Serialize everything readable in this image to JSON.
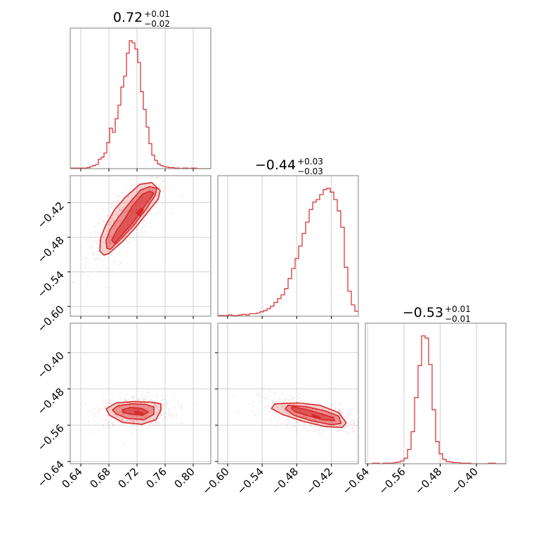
{
  "chart_data": {
    "type": "corner",
    "color": "#d62728",
    "grid": true,
    "params": [
      {
        "title": {
          "median": "0.72",
          "plus": "+0.01",
          "minus": "−0.02"
        },
        "range": [
          0.625,
          0.825
        ],
        "ticks": [
          0.64,
          0.68,
          0.72,
          0.76,
          0.8
        ],
        "tick_labels": [
          "0.64",
          "0.68",
          "0.72",
          "0.76",
          "0.80"
        ]
      },
      {
        "title": {
          "median": "−0.44",
          "plus": "+0.03",
          "minus": "−0.03"
        },
        "range": [
          -0.617,
          -0.373
        ],
        "ticks": [
          -0.6,
          -0.54,
          -0.48,
          -0.42
        ],
        "tick_labels": [
          "−0.60",
          "−0.54",
          "−0.48",
          "−0.42"
        ]
      },
      {
        "title": {
          "median": "−0.53",
          "plus": "+0.01",
          "minus": "−0.01"
        },
        "range": [
          -0.645,
          -0.335
        ],
        "ticks": [
          -0.64,
          -0.56,
          -0.48,
          -0.4
        ],
        "tick_labels": [
          "−0.64",
          "−0.56",
          "−0.48",
          "−0.40"
        ]
      }
    ],
    "histograms": [
      {
        "param": 0,
        "bin_edges": [
          0.625,
          0.825
        ],
        "counts": [
          1,
          1,
          1,
          1,
          1,
          1,
          2,
          4,
          6,
          8,
          18,
          22,
          30,
          50,
          78,
          70,
          96,
          122,
          157,
          178,
          222,
          246,
          242,
          230,
          204,
          148,
          114,
          80,
          48,
          26,
          16,
          9,
          6,
          4,
          3,
          2,
          2,
          1,
          1,
          0,
          1,
          1,
          0,
          1,
          1,
          0,
          0,
          0,
          0,
          0
        ]
      },
      {
        "param": 1,
        "bin_edges": [
          -0.617,
          -0.373
        ],
        "counts": [
          1,
          1,
          1,
          2,
          1,
          1,
          2,
          3,
          2,
          4,
          4,
          5,
          7,
          9,
          12,
          16,
          22,
          28,
          34,
          44,
          60,
          76,
          92,
          112,
          132,
          150,
          170,
          182,
          186,
          194,
          202,
          204,
          198,
          186,
          168,
          142,
          78,
          40,
          18,
          8
        ]
      },
      {
        "param": 2,
        "bin_edges": [
          -0.645,
          -0.335
        ],
        "counts": [
          0,
          0,
          1,
          1,
          0,
          1,
          1,
          1,
          2,
          3,
          5,
          10,
          26,
          58,
          120,
          178,
          232,
          228,
          180,
          98,
          40,
          18,
          8,
          4,
          3,
          2,
          2,
          1,
          1,
          1,
          0,
          0,
          0,
          0,
          0,
          1,
          1,
          0,
          0,
          0
        ]
      }
    ],
    "pairs": [
      {
        "x_param": 0,
        "y_param": 1,
        "contours": [
          [
            [
              0.688,
              -0.491
            ],
            [
              0.7,
              -0.474
            ],
            [
              0.716,
              -0.452
            ],
            [
              0.73,
              -0.427
            ],
            [
              0.741,
              -0.409
            ],
            [
              0.744,
              -0.403
            ],
            [
              0.738,
              -0.4
            ],
            [
              0.728,
              -0.405
            ],
            [
              0.714,
              -0.425
            ],
            [
              0.702,
              -0.449
            ],
            [
              0.69,
              -0.47
            ],
            [
              0.684,
              -0.485
            ]
          ],
          [
            [
              0.682,
              -0.501
            ],
            [
              0.698,
              -0.482
            ],
            [
              0.716,
              -0.458
            ],
            [
              0.733,
              -0.431
            ],
            [
              0.746,
              -0.407
            ],
            [
              0.748,
              -0.395
            ],
            [
              0.738,
              -0.392
            ],
            [
              0.725,
              -0.398
            ],
            [
              0.709,
              -0.421
            ],
            [
              0.693,
              -0.446
            ],
            [
              0.682,
              -0.466
            ],
            [
              0.676,
              -0.485
            ],
            [
              0.677,
              -0.499
            ]
          ],
          [
            [
              0.68,
              -0.508
            ],
            [
              0.7,
              -0.487
            ],
            [
              0.72,
              -0.46
            ],
            [
              0.738,
              -0.432
            ],
            [
              0.75,
              -0.414
            ],
            [
              0.753,
              -0.399
            ],
            [
              0.741,
              -0.385
            ],
            [
              0.724,
              -0.388
            ],
            [
              0.703,
              -0.411
            ],
            [
              0.688,
              -0.432
            ],
            [
              0.675,
              -0.46
            ],
            [
              0.668,
              -0.482
            ],
            [
              0.667,
              -0.504
            ],
            [
              0.673,
              -0.511
            ]
          ]
        ],
        "core": [
          [
            0.718,
            -0.438
          ],
          [
            0.726,
            -0.428
          ],
          [
            0.73,
            -0.432
          ],
          [
            0.724,
            -0.444
          ]
        ]
      },
      {
        "x_param": 0,
        "y_param": 2,
        "contours": [
          [
            [
              0.7,
              -0.532
            ],
            [
              0.712,
              -0.536
            ],
            [
              0.728,
              -0.538
            ],
            [
              0.736,
              -0.531
            ],
            [
              0.727,
              -0.523
            ],
            [
              0.71,
              -0.521
            ],
            [
              0.699,
              -0.526
            ]
          ],
          [
            [
              0.69,
              -0.535
            ],
            [
              0.706,
              -0.545
            ],
            [
              0.73,
              -0.548
            ],
            [
              0.744,
              -0.536
            ],
            [
              0.744,
              -0.52
            ],
            [
              0.732,
              -0.514
            ],
            [
              0.712,
              -0.513
            ],
            [
              0.693,
              -0.517
            ],
            [
              0.685,
              -0.526
            ]
          ],
          [
            [
              0.681,
              -0.538
            ],
            [
              0.7,
              -0.554
            ],
            [
              0.727,
              -0.558
            ],
            [
              0.747,
              -0.548
            ],
            [
              0.754,
              -0.527
            ],
            [
              0.754,
              -0.513
            ],
            [
              0.74,
              -0.509
            ],
            [
              0.714,
              -0.508
            ],
            [
              0.69,
              -0.511
            ],
            [
              0.676,
              -0.524
            ]
          ]
        ],
        "core": [
          [
            0.716,
            -0.528
          ],
          [
            0.728,
            -0.531
          ],
          [
            0.73,
            -0.536
          ],
          [
            0.716,
            -0.535
          ]
        ]
      },
      {
        "x_param": 1,
        "y_param": 2,
        "contours": [
          [
            [
              -0.487,
              -0.519
            ],
            [
              -0.462,
              -0.526
            ],
            [
              -0.437,
              -0.535
            ],
            [
              -0.417,
              -0.543
            ],
            [
              -0.414,
              -0.55
            ],
            [
              -0.435,
              -0.548
            ],
            [
              -0.461,
              -0.539
            ],
            [
              -0.483,
              -0.53
            ],
            [
              -0.49,
              -0.522
            ]
          ],
          [
            [
              -0.495,
              -0.516
            ],
            [
              -0.464,
              -0.519
            ],
            [
              -0.432,
              -0.528
            ],
            [
              -0.407,
              -0.54
            ],
            [
              -0.403,
              -0.556
            ],
            [
              -0.42,
              -0.559
            ],
            [
              -0.455,
              -0.55
            ],
            [
              -0.485,
              -0.538
            ],
            [
              -0.5,
              -0.524
            ]
          ],
          [
            [
              -0.518,
              -0.513
            ],
            [
              -0.478,
              -0.511
            ],
            [
              -0.44,
              -0.516
            ],
            [
              -0.407,
              -0.532
            ],
            [
              -0.394,
              -0.555
            ],
            [
              -0.401,
              -0.565
            ],
            [
              -0.431,
              -0.563
            ],
            [
              -0.47,
              -0.551
            ],
            [
              -0.505,
              -0.536
            ],
            [
              -0.524,
              -0.523
            ]
          ]
        ],
        "core": [
          [
            -0.455,
            -0.535
          ],
          [
            -0.44,
            -0.54
          ],
          [
            -0.438,
            -0.545
          ],
          [
            -0.452,
            -0.542
          ]
        ]
      }
    ]
  }
}
